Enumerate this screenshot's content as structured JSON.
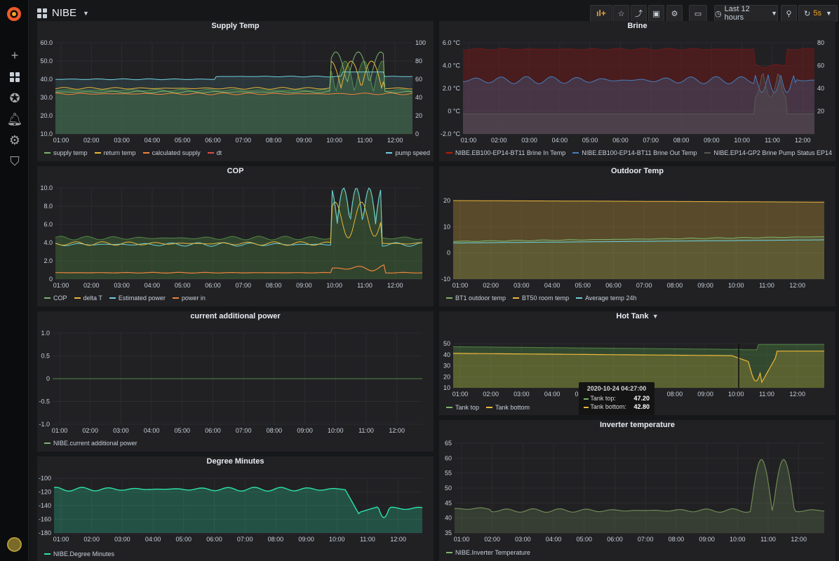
{
  "dashboard": {
    "title": "NIBE"
  },
  "toolbar": {
    "time_range": "Last 12 hours",
    "refresh": "5s"
  },
  "icons": {
    "add": "plus-icon",
    "dashboards": "dashboards-icon",
    "explore": "compass-icon",
    "alerting": "bell-icon",
    "config": "gear-icon",
    "admin": "shield-icon"
  },
  "times": [
    "01:00",
    "02:00",
    "03:00",
    "04:00",
    "05:00",
    "06:00",
    "07:00",
    "08:00",
    "09:00",
    "10:00",
    "11:00",
    "12:00"
  ],
  "panels": {
    "supply": {
      "title": "Supply Temp",
      "yticks": [
        "60.0",
        "50.0",
        "40.0",
        "30.0",
        "20.0",
        "10.0"
      ],
      "y2ticks": [
        "100",
        "80",
        "60",
        "40",
        "20",
        "0"
      ],
      "legend": [
        "supply temp",
        "return temp",
        "calculated supply",
        "dt"
      ],
      "legend_right": "pump speed"
    },
    "brine": {
      "title": "Brine",
      "yticks": [
        "6.0 °C",
        "4.0 °C",
        "2.0 °C",
        "0 °C",
        "-2.0 °C"
      ],
      "y2ticks": [
        "80",
        "60",
        "40",
        "20"
      ],
      "legend": [
        "NIBE.EB100-EP14-BT11 Brine In Temp",
        "NIBE.EB100-EP14-BT11 Brine Out Temp"
      ],
      "legend_right": "NIBE.EP14-GP2 Brine Pump Status EP14"
    },
    "cop": {
      "title": "COP",
      "yticks": [
        "10.0",
        "8.0",
        "6.0",
        "4.0",
        "2.0",
        "0"
      ],
      "legend": [
        "COP",
        "delta T",
        "Estimated power",
        "power in"
      ]
    },
    "outdoor": {
      "title": "Outdoor Temp",
      "yticks": [
        "20",
        "10",
        "0",
        "-10"
      ],
      "legend": [
        "BT1 outdoor temp",
        "BT50 room temp",
        "Average temp 24h"
      ]
    },
    "additional": {
      "title": "current additional power",
      "yticks": [
        "1.0",
        "0.5",
        "0",
        "-0.5",
        "-1.0"
      ],
      "legend": [
        "NIBE.current additional power"
      ]
    },
    "hottank": {
      "title": "Hot Tank",
      "yticks": [
        "50",
        "40",
        "30",
        "20",
        "10"
      ],
      "legend": [
        "Tank top",
        "Tank bottom"
      ]
    },
    "degree": {
      "title": "Degree Minutes",
      "yticks": [
        "-100",
        "-120",
        "-140",
        "-160",
        "-180"
      ],
      "legend": [
        "NIBE.Degree Minutes"
      ]
    },
    "inverter": {
      "title": "Inverter temperature",
      "yticks": [
        "65",
        "60",
        "55",
        "50",
        "45",
        "40",
        "35"
      ],
      "legend": [
        "NIBE.Inverter Temperature"
      ]
    }
  },
  "tooltip": {
    "time": "2020-10-24 04:27:00",
    "rows": [
      {
        "label": "Tank top:",
        "value": "47.20"
      },
      {
        "label": "Tank bottom:",
        "value": "42.80"
      }
    ]
  },
  "colors": {
    "green": "#7eb26d",
    "yellow": "#eab839",
    "cyan": "#6ed0e0",
    "orange": "#ef843c",
    "red": "#e24d42",
    "blue": "#1f78c1",
    "olive": "#508642",
    "brine_red": "#bf1b00",
    "brine_blue": "#447ebc",
    "teal": "#2ce3a5"
  }
}
